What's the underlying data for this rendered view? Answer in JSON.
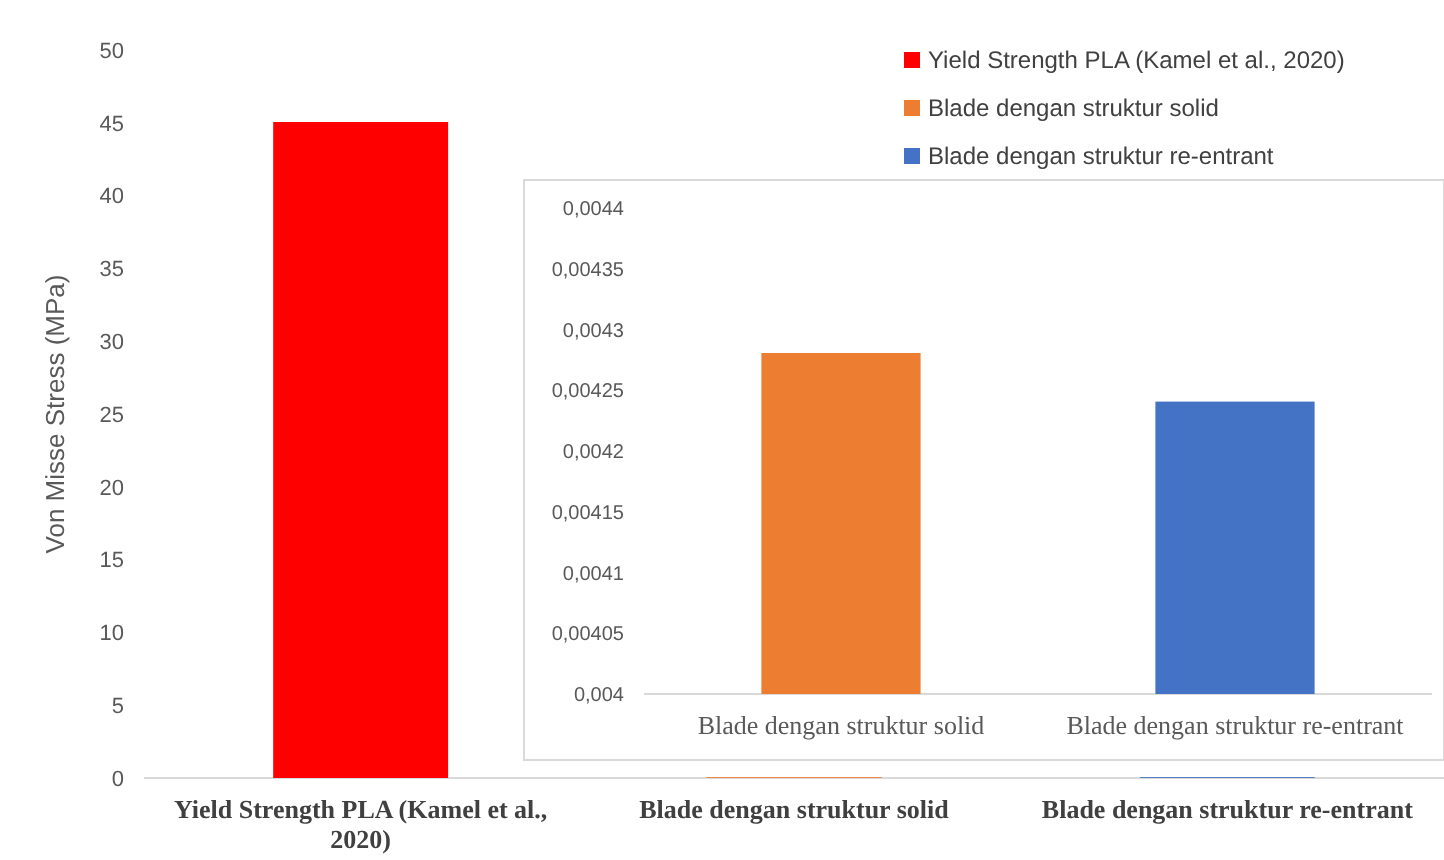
{
  "chart_data": [
    {
      "type": "bar",
      "ylabel": "Von Misse Stress (MPa)",
      "categories": [
        "Yield Strength PLA (Kamel et al., 2020)",
        "Blade dengan struktur solid",
        "Blade dengan struktur re-entrant"
      ],
      "series": [
        {
          "name": "Yield Strength PLA (Kamel et al., 2020)",
          "color": "#ff0000",
          "values": [
            45,
            null,
            null
          ]
        },
        {
          "name": "Blade dengan struktur solid",
          "color": "#ed7d31",
          "values": [
            null,
            0.00428,
            null
          ]
        },
        {
          "name": "Blade dengan struktur re-entrant",
          "color": "#4472c4",
          "values": [
            null,
            null,
            0.00424
          ]
        }
      ],
      "ylim": [
        0,
        50
      ],
      "yticks": [
        0,
        5,
        10,
        15,
        20,
        25,
        30,
        35,
        40,
        45,
        50
      ],
      "grid": false,
      "legend": "top right"
    },
    {
      "type": "bar",
      "categories": [
        "Blade dengan struktur solid",
        "Blade dengan struktur re-entrant"
      ],
      "values": [
        0.00428,
        0.00424
      ],
      "colors": [
        "#ed7d31",
        "#4472c4"
      ],
      "ylim": [
        0.004,
        0.0044
      ],
      "yticks": [
        {
          "value": 0.004,
          "label": "0,004"
        },
        {
          "value": 0.00405,
          "label": "0,00405"
        },
        {
          "value": 0.0041,
          "label": "0,0041"
        },
        {
          "value": 0.00415,
          "label": "0,00415"
        },
        {
          "value": 0.0042,
          "label": "0,0042"
        },
        {
          "value": 0.00425,
          "label": "0,00425"
        },
        {
          "value": 0.0043,
          "label": "0,0043"
        },
        {
          "value": 0.00435,
          "label": "0,00435"
        },
        {
          "value": 0.0044,
          "label": "0,0044"
        }
      ],
      "grid": false
    }
  ]
}
